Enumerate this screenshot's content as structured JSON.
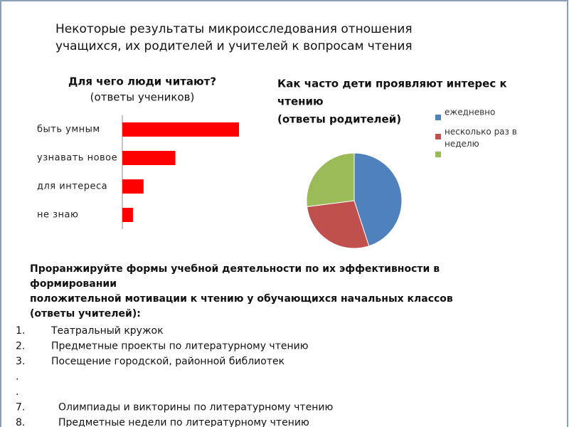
{
  "header": {
    "title_lines": [
      "Некоторые результаты микроисследования отношения",
      "учащихся, их родителей  и учителей к вопросам чтения"
    ]
  },
  "chart_data": [
    {
      "type": "bar",
      "orientation": "horizontal",
      "title_lines": [
        "Для чего люди читают?",
        "(ответы учеников)"
      ],
      "categories": [
        "быть умным",
        "узнавать новое",
        "для интереса",
        "не знаю"
      ],
      "values": [
        11,
        5,
        2,
        1
      ],
      "color": "#ff0000",
      "xlim": [
        0,
        11
      ]
    },
    {
      "type": "pie",
      "title_lines": [
        "Как часто дети проявляют интерес к",
        "чтению",
        "(ответы родителей)"
      ],
      "categories": [
        "ежедневно",
        "несколько раз в неделю",
        null
      ],
      "values": [
        45,
        28,
        27
      ],
      "colors": [
        "#4f81bd",
        "#c0504d",
        "#9bbb59"
      ],
      "legend": "right"
    }
  ],
  "teachers": {
    "question_lines": [
      "Проранжируйте формы учебной деятельности по их эффективности в",
      "формировании",
      "положительной мотивации к чтению у обучающихся начальных классов",
      "(ответы учителей):"
    ],
    "items": [
      {
        "marker": "1.",
        "text": "Театральный кружок"
      },
      {
        "marker": "2.",
        "text": "Предметные проекты по литературному чтению"
      },
      {
        "marker": "3.",
        "text": "Посещение городской, районной библиотек"
      },
      {
        "marker": "."
      },
      {
        "marker": "."
      },
      {
        "marker": "7.",
        "text": "Олимпиады и викторины по литературному чтению"
      },
      {
        "marker": "8.",
        "text": "Предметные недели по литературному чтению"
      }
    ]
  }
}
